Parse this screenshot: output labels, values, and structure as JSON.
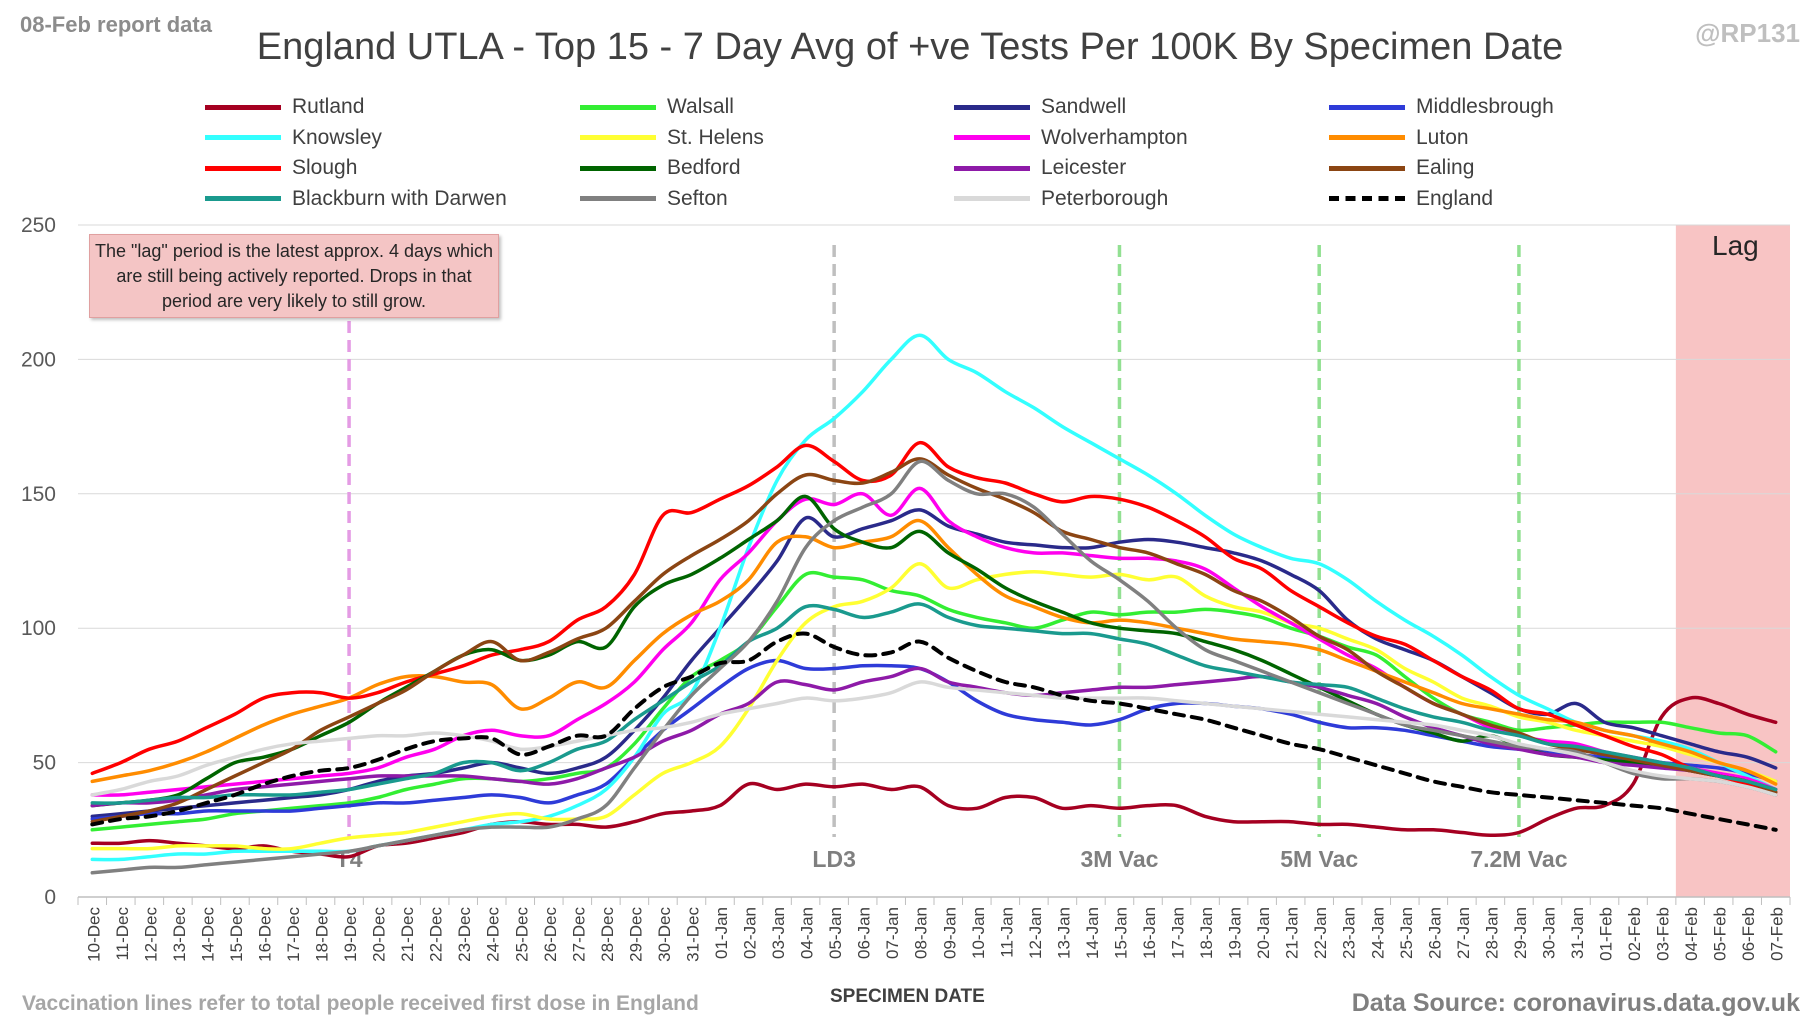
{
  "corner_left": "08-Feb report data",
  "corner_right": "@RP131",
  "footnote": "Vaccination lines refer to total people received first dose in England",
  "source": "Data Source: coronavirus.data.gov.uk",
  "note": "The \"lag\" period is the latest approx. 4 days which are still being actively reported. Drops in that period are very likely to still grow.",
  "chart_data": {
    "type": "line",
    "title": "England UTLA - Top 15 - 7 Day Avg of +ve Tests Per 100K By Specimen Date",
    "xlabel": "SPECIMEN DATE",
    "ylabel": "",
    "ylim": [
      0,
      250
    ],
    "yticks": [
      0,
      50,
      100,
      150,
      200,
      250
    ],
    "grid": "horizontal",
    "legend_position": "top",
    "x": [
      "10-Dec",
      "11-Dec",
      "12-Dec",
      "13-Dec",
      "14-Dec",
      "15-Dec",
      "16-Dec",
      "17-Dec",
      "18-Dec",
      "19-Dec",
      "20-Dec",
      "21-Dec",
      "22-Dec",
      "23-Dec",
      "24-Dec",
      "25-Dec",
      "26-Dec",
      "27-Dec",
      "28-Dec",
      "29-Dec",
      "30-Dec",
      "31-Dec",
      "01-Jan",
      "02-Jan",
      "03-Jan",
      "04-Jan",
      "05-Jan",
      "06-Jan",
      "07-Jan",
      "08-Jan",
      "09-Jan",
      "10-Jan",
      "11-Jan",
      "12-Jan",
      "13-Jan",
      "14-Jan",
      "15-Jan",
      "16-Jan",
      "17-Jan",
      "18-Jan",
      "19-Jan",
      "20-Jan",
      "21-Jan",
      "22-Jan",
      "23-Jan",
      "24-Jan",
      "25-Jan",
      "26-Jan",
      "27-Jan",
      "28-Jan",
      "29-Jan",
      "30-Jan",
      "31-Jan",
      "01-Feb",
      "02-Feb",
      "03-Feb",
      "04-Feb",
      "05-Feb",
      "06-Feb",
      "07-Feb"
    ],
    "lag_region": {
      "from": "04-Feb",
      "to": "07-Feb",
      "label": "Lag",
      "color": "#f8c4c4"
    },
    "annotations": [
      {
        "x": "19-Dec",
        "label": "T4",
        "color": "#e49be4"
      },
      {
        "x": "05-Jan",
        "label": "LD3",
        "color": "#bfbfbf"
      },
      {
        "x": "15-Jan",
        "label": "3M Vac",
        "color": "#92e092"
      },
      {
        "x": "22-Jan",
        "label": "5M Vac",
        "color": "#92e092"
      },
      {
        "x": "29-Jan",
        "label": "7.2M Vac",
        "color": "#92e092"
      }
    ],
    "series": [
      {
        "name": "Rutland",
        "color": "#a50021",
        "values": [
          20,
          20,
          21,
          20,
          19,
          18,
          19,
          17,
          16,
          15,
          19,
          20,
          22,
          24,
          27,
          28,
          27,
          27,
          26,
          28,
          31,
          32,
          34,
          42,
          40,
          42,
          41,
          42,
          40,
          41,
          34,
          33,
          37,
          37,
          33,
          34,
          33,
          34,
          34,
          30,
          28,
          28,
          28,
          27,
          27,
          26,
          25,
          25,
          24,
          23,
          24,
          29,
          33,
          34,
          42,
          67,
          74,
          72,
          68,
          65
        ]
      },
      {
        "name": "Walsall",
        "color": "#33ee33",
        "values": [
          25,
          26,
          27,
          28,
          29,
          31,
          32,
          33,
          34,
          35,
          37,
          40,
          42,
          44,
          44,
          43,
          44,
          46,
          48,
          57,
          70,
          82,
          88,
          95,
          108,
          120,
          119,
          118,
          114,
          112,
          107,
          104,
          102,
          100,
          103,
          106,
          105,
          106,
          106,
          107,
          106,
          104,
          100,
          97,
          93,
          90,
          82,
          74,
          68,
          65,
          62,
          63,
          64,
          65,
          65,
          65,
          63,
          61,
          60,
          54
        ]
      },
      {
        "name": "Sandwell",
        "color": "#2a2a8a",
        "values": [
          30,
          31,
          32,
          33,
          34,
          35,
          36,
          37,
          38,
          40,
          43,
          45,
          46,
          48,
          50,
          48,
          46,
          48,
          52,
          62,
          74,
          88,
          100,
          112,
          125,
          141,
          134,
          137,
          140,
          144,
          138,
          135,
          132,
          131,
          130,
          130,
          132,
          133,
          132,
          130,
          128,
          125,
          120,
          114,
          103,
          96,
          92,
          88,
          82,
          76,
          70,
          68,
          72,
          65,
          63,
          60,
          57,
          54,
          52,
          48
        ]
      },
      {
        "name": "Middlesbrough",
        "color": "#2e3bd8",
        "values": [
          29,
          30,
          31,
          31,
          32,
          32,
          32,
          32,
          33,
          34,
          35,
          35,
          36,
          37,
          38,
          37,
          35,
          38,
          42,
          52,
          62,
          70,
          78,
          85,
          88,
          85,
          85,
          86,
          86,
          85,
          80,
          73,
          68,
          66,
          65,
          64,
          66,
          70,
          72,
          72,
          71,
          70,
          68,
          65,
          63,
          63,
          62,
          60,
          58,
          56,
          55,
          54,
          53,
          52,
          51,
          50,
          49,
          48,
          46,
          43
        ]
      },
      {
        "name": "Knowsley",
        "color": "#33ffff",
        "values": [
          14,
          14,
          15,
          16,
          16,
          17,
          17,
          17,
          17,
          17,
          19,
          21,
          23,
          25,
          27,
          28,
          30,
          34,
          40,
          52,
          68,
          76,
          100,
          130,
          155,
          170,
          178,
          188,
          200,
          209,
          200,
          195,
          188,
          182,
          175,
          169,
          163,
          157,
          150,
          142,
          135,
          130,
          126,
          124,
          118,
          110,
          103,
          97,
          90,
          82,
          75,
          70,
          65,
          62,
          60,
          58,
          55,
          50,
          45,
          40
        ]
      },
      {
        "name": "St. Helens",
        "color": "#ffff33",
        "values": [
          18,
          18,
          18,
          19,
          19,
          19,
          18,
          18,
          20,
          22,
          23,
          24,
          26,
          28,
          30,
          31,
          29,
          29,
          30,
          38,
          46,
          50,
          56,
          70,
          88,
          102,
          108,
          110,
          115,
          124,
          115,
          118,
          120,
          121,
          120,
          119,
          120,
          118,
          119,
          112,
          108,
          106,
          102,
          100,
          96,
          92,
          85,
          80,
          74,
          71,
          67,
          65,
          62,
          60,
          58,
          56,
          53,
          50,
          47,
          43
        ]
      },
      {
        "name": "Wolverhampton",
        "color": "#ff00ee",
        "values": [
          38,
          38,
          39,
          40,
          41,
          42,
          43,
          44,
          45,
          46,
          48,
          52,
          55,
          60,
          62,
          60,
          60,
          66,
          72,
          80,
          92,
          102,
          118,
          128,
          140,
          148,
          146,
          150,
          142,
          152,
          140,
          134,
          130,
          128,
          128,
          127,
          126,
          126,
          125,
          122,
          115,
          108,
          102,
          96,
          90,
          85,
          78,
          72,
          68,
          63,
          60,
          58,
          57,
          54,
          52,
          50,
          48,
          46,
          44,
          40
        ]
      },
      {
        "name": "Luton",
        "color": "#ff8c00",
        "values": [
          43,
          45,
          47,
          50,
          54,
          59,
          64,
          68,
          71,
          74,
          79,
          82,
          82,
          80,
          79,
          70,
          74,
          80,
          78,
          88,
          98,
          105,
          110,
          118,
          132,
          134,
          130,
          132,
          134,
          140,
          130,
          120,
          112,
          108,
          104,
          102,
          103,
          102,
          100,
          98,
          96,
          95,
          94,
          92,
          88,
          84,
          80,
          76,
          72,
          70,
          68,
          66,
          65,
          62,
          60,
          57,
          54,
          50,
          47,
          42
        ]
      },
      {
        "name": "Slough",
        "color": "#ff0000",
        "values": [
          46,
          50,
          55,
          58,
          63,
          68,
          74,
          76,
          76,
          74,
          76,
          80,
          83,
          86,
          90,
          92,
          95,
          103,
          108,
          120,
          142,
          143,
          148,
          153,
          160,
          168,
          162,
          155,
          157,
          169,
          160,
          156,
          154,
          150,
          147,
          149,
          148,
          145,
          140,
          134,
          126,
          122,
          114,
          108,
          102,
          97,
          94,
          88,
          82,
          77,
          70,
          68,
          64,
          60,
          56,
          53,
          48,
          45,
          42,
          38
        ]
      },
      {
        "name": "Bedford",
        "color": "#006400",
        "values": [
          34,
          35,
          36,
          38,
          44,
          50,
          52,
          55,
          60,
          65,
          72,
          78,
          84,
          90,
          92,
          88,
          90,
          95,
          93,
          108,
          116,
          120,
          126,
          133,
          140,
          149,
          137,
          132,
          130,
          136,
          128,
          122,
          115,
          110,
          106,
          102,
          100,
          99,
          98,
          95,
          92,
          88,
          83,
          78,
          73,
          68,
          64,
          61,
          58,
          60,
          56,
          53,
          52,
          51,
          50,
          49,
          47,
          45,
          43,
          39
        ]
      },
      {
        "name": "Leicester",
        "color": "#8e1aa8",
        "values": [
          34,
          35,
          35,
          36,
          38,
          40,
          41,
          42,
          43,
          44,
          45,
          45,
          45,
          45,
          44,
          43,
          42,
          44,
          48,
          52,
          58,
          62,
          68,
          72,
          80,
          79,
          77,
          80,
          82,
          85,
          80,
          78,
          76,
          75,
          76,
          77,
          78,
          78,
          79,
          80,
          81,
          82,
          80,
          78,
          75,
          72,
          67,
          63,
          60,
          57,
          55,
          53,
          52,
          50,
          49,
          48,
          47,
          45,
          43,
          40
        ]
      },
      {
        "name": "Ealing",
        "color": "#8b4513",
        "values": [
          28,
          30,
          32,
          35,
          40,
          45,
          50,
          55,
          62,
          67,
          72,
          77,
          84,
          90,
          95,
          88,
          91,
          96,
          100,
          110,
          120,
          127,
          133,
          140,
          150,
          157,
          155,
          154,
          158,
          163,
          157,
          152,
          148,
          143,
          136,
          133,
          130,
          128,
          124,
          120,
          114,
          110,
          104,
          97,
          92,
          84,
          78,
          72,
          68,
          64,
          61,
          57,
          55,
          53,
          51,
          49,
          47,
          45,
          43,
          39
        ]
      },
      {
        "name": "Blackburn with Darwen",
        "color": "#1a9a8e",
        "values": [
          35,
          35,
          36,
          37,
          37,
          38,
          38,
          38,
          39,
          40,
          42,
          44,
          46,
          50,
          50,
          47,
          50,
          55,
          58,
          66,
          73,
          80,
          86,
          95,
          100,
          108,
          107,
          104,
          106,
          109,
          104,
          101,
          100,
          99,
          98,
          98,
          96,
          94,
          90,
          86,
          84,
          82,
          80,
          79,
          78,
          74,
          70,
          67,
          65,
          62,
          60,
          57,
          56,
          54,
          52,
          50,
          48,
          45,
          43,
          40
        ]
      },
      {
        "name": "Sefton",
        "color": "#808080",
        "values": [
          9,
          10,
          11,
          11,
          12,
          13,
          14,
          15,
          16,
          17,
          19,
          21,
          23,
          25,
          26,
          26,
          26,
          29,
          34,
          48,
          62,
          75,
          85,
          95,
          110,
          130,
          140,
          145,
          150,
          162,
          155,
          150,
          150,
          145,
          135,
          125,
          118,
          110,
          100,
          92,
          88,
          84,
          80,
          76,
          72,
          68,
          64,
          62,
          60,
          58,
          56,
          55,
          54,
          50,
          46,
          44,
          44,
          43,
          41,
          38
        ]
      },
      {
        "name": "Peterborough",
        "color": "#d9d9d9",
        "values": [
          38,
          40,
          43,
          45,
          49,
          52,
          55,
          57,
          58,
          59,
          60,
          60,
          61,
          60,
          58,
          55,
          56,
          58,
          60,
          62,
          63,
          65,
          68,
          70,
          72,
          74,
          73,
          74,
          76,
          80,
          78,
          77,
          76,
          75,
          74,
          74,
          74,
          74,
          73,
          72,
          71,
          70,
          69,
          68,
          67,
          66,
          65,
          64,
          62,
          60,
          57,
          55,
          53,
          50,
          47,
          45,
          44,
          43,
          41,
          38
        ]
      },
      {
        "name": "England",
        "color": "#000000",
        "dashed": true,
        "values": [
          27,
          29,
          30,
          32,
          35,
          38,
          42,
          45,
          47,
          48,
          51,
          55,
          58,
          59,
          59,
          53,
          56,
          60,
          60,
          70,
          78,
          82,
          87,
          88,
          95,
          98,
          93,
          90,
          91,
          95,
          89,
          84,
          80,
          78,
          75,
          73,
          72,
          70,
          68,
          66,
          63,
          60,
          57,
          55,
          52,
          49,
          46,
          43,
          41,
          39,
          38,
          37,
          36,
          35,
          34,
          33,
          31,
          29,
          27,
          25
        ]
      }
    ]
  }
}
